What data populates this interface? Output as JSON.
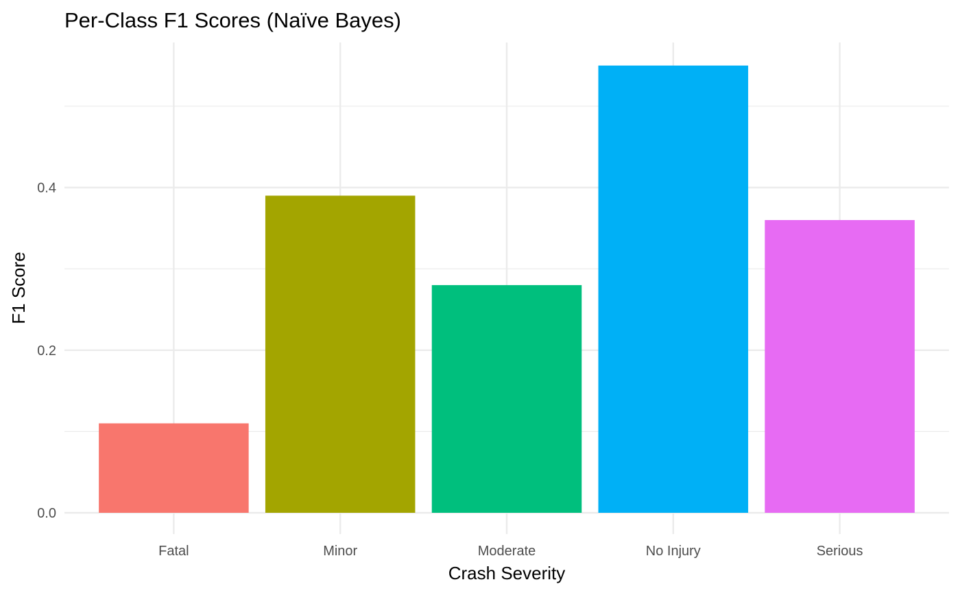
{
  "chart_data": {
    "type": "bar",
    "title": "Per-Class F1 Scores (Naïve Bayes)",
    "xlabel": "Crash Severity",
    "ylabel": "F1 Score",
    "categories": [
      "Fatal",
      "Minor",
      "Moderate",
      "No Injury",
      "Serious"
    ],
    "values": [
      0.11,
      0.39,
      0.28,
      0.55,
      0.36
    ],
    "colors": [
      "#F8766D",
      "#A3A500",
      "#00BF7D",
      "#00B0F6",
      "#E76BF3"
    ],
    "y_ticks": [
      0.0,
      0.2,
      0.4
    ],
    "y_tick_labels": [
      "0.0",
      "0.2",
      "0.4"
    ],
    "ylim": [
      0,
      0.5775
    ],
    "grid": true,
    "legend": "none"
  }
}
